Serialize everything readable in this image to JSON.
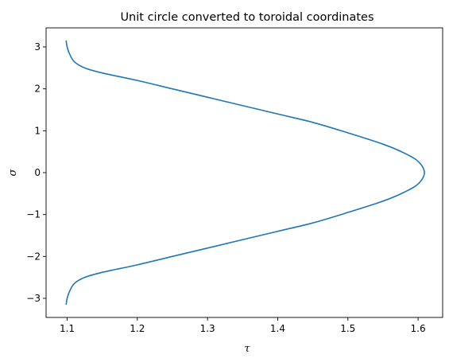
{
  "chart_data": {
    "type": "line",
    "title": "Unit circle converted to toroidal coordinates",
    "xlabel": "τ",
    "ylabel": "σ",
    "xlim": [
      1.07,
      1.635
    ],
    "ylim": [
      -3.456,
      3.456
    ],
    "xticks": [
      1.1,
      1.2,
      1.3,
      1.4,
      1.5,
      1.6
    ],
    "xtick_labels": [
      "1.1",
      "1.2",
      "1.3",
      "1.4",
      "1.5",
      "1.6"
    ],
    "yticks": [
      -3,
      -2,
      -1,
      0,
      1,
      2,
      3
    ],
    "ytick_labels": [
      "−3",
      "−2",
      "−1",
      "0",
      "1",
      "2",
      "3"
    ],
    "grid": false,
    "series": [
      {
        "color": "#1f77b4",
        "x": [
          1.0986,
          1.1,
          1.103,
          1.11,
          1.125,
          1.15,
          1.2,
          1.25,
          1.3,
          1.35,
          1.4,
          1.45,
          1.5,
          1.55,
          1.58,
          1.6,
          1.609,
          1.6,
          1.58,
          1.55,
          1.5,
          1.45,
          1.4,
          1.35,
          1.3,
          1.25,
          1.2,
          1.15,
          1.125,
          1.11,
          1.103,
          1.1,
          1.0986
        ],
        "y": [
          3.1416,
          3.0,
          2.85,
          2.65,
          2.5,
          2.38,
          2.2,
          2.0,
          1.8,
          1.6,
          1.4,
          1.2,
          0.95,
          0.68,
          0.47,
          0.27,
          0.0,
          -0.27,
          -0.47,
          -0.68,
          -0.95,
          -1.2,
          -1.4,
          -1.6,
          -1.8,
          -2.0,
          -2.2,
          -2.38,
          -2.5,
          -2.65,
          -2.85,
          -3.0,
          -3.1416
        ]
      }
    ]
  }
}
